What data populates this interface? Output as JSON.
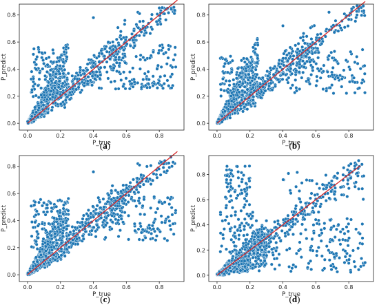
{
  "chart_data": [
    {
      "type": "scatter",
      "caption": "a",
      "xlabel": "P_true",
      "ylabel": "P_predict",
      "xlim": [
        -0.05,
        0.95
      ],
      "ylim": [
        -0.05,
        0.88
      ],
      "xticks": [
        "0.0",
        "0.2",
        "0.4",
        "0.6",
        "0.8"
      ],
      "yticks": [
        "0.0",
        "0.2",
        "0.4",
        "0.6",
        "0.8"
      ],
      "grid": false,
      "point_color": "#1f77b4",
      "line_color": "#d62728",
      "reference_line": {
        "x": [
          0.0,
          0.91
        ],
        "y": [
          0.0,
          0.91
        ]
      },
      "clusters": [
        {
          "n": 520,
          "x": [
            0.0,
            0.25
          ],
          "rel_min": 0.55,
          "rel_max": 2.5,
          "noise": 0.012
        },
        {
          "n": 100,
          "x": [
            0.02,
            0.2
          ],
          "y": [
            0.18,
            0.56
          ]
        },
        {
          "n": 200,
          "x": [
            0.25,
            0.6
          ],
          "rel_min": 0.75,
          "rel_max": 1.25,
          "noise": 0.03
        },
        {
          "n": 110,
          "x": [
            0.5,
            0.9
          ],
          "rel_min": 0.9,
          "rel_max": 1.08,
          "noise": 0.02
        },
        {
          "n": 110,
          "x": [
            0.4,
            0.9
          ],
          "y": [
            0.25,
            0.58
          ]
        },
        {
          "n": 25,
          "x": [
            0.62,
            0.8
          ],
          "y": [
            0.26,
            0.34
          ]
        }
      ],
      "extra_points": [
        {
          "x": 0.4,
          "y": 0.78
        },
        {
          "x": 0.67,
          "y": 0.82
        },
        {
          "x": 0.68,
          "y": 0.81
        }
      ]
    },
    {
      "type": "scatter",
      "caption": "b",
      "xlabel": "P_true",
      "ylabel": "P_predict",
      "xlim": [
        -0.05,
        0.95
      ],
      "ylim": [
        -0.05,
        0.88
      ],
      "xticks": [
        "0.0",
        "0.2",
        "0.4",
        "0.6",
        "0.8"
      ],
      "yticks": [
        "0.0",
        "0.2",
        "0.4",
        "0.6",
        "0.8"
      ],
      "grid": false,
      "point_color": "#1f77b4",
      "line_color": "#d62728",
      "reference_line": {
        "x": [
          0.0,
          0.9
        ],
        "y": [
          0.0,
          0.9
        ]
      },
      "clusters": [
        {
          "n": 520,
          "x": [
            0.0,
            0.25
          ],
          "rel_min": 0.6,
          "rel_max": 2.6,
          "noise": 0.012
        },
        {
          "n": 100,
          "x": [
            0.02,
            0.22
          ],
          "y": [
            0.2,
            0.5
          ]
        },
        {
          "n": 200,
          "x": [
            0.25,
            0.6
          ],
          "rel_min": 0.75,
          "rel_max": 1.25,
          "noise": 0.03
        },
        {
          "n": 110,
          "x": [
            0.5,
            0.9
          ],
          "rel_min": 0.9,
          "rel_max": 1.05,
          "noise": 0.02
        },
        {
          "n": 110,
          "x": [
            0.4,
            0.9
          ],
          "y": [
            0.22,
            0.55
          ]
        },
        {
          "n": 20,
          "x": [
            0.66,
            0.88
          ],
          "y": [
            0.3,
            0.36
          ]
        }
      ],
      "extra_points": [
        {
          "x": 0.4,
          "y": 0.72
        },
        {
          "x": 0.68,
          "y": 0.82
        },
        {
          "x": 0.85,
          "y": 0.8
        }
      ]
    },
    {
      "type": "scatter",
      "caption": "c",
      "xlabel": "P_true",
      "ylabel": "P_predict",
      "xlim": [
        -0.05,
        0.95
      ],
      "ylim": [
        -0.05,
        0.88
      ],
      "xticks": [
        "0.0",
        "0.2",
        "0.4",
        "0.6",
        "0.8"
      ],
      "yticks": [
        "0.0",
        "0.2",
        "0.4",
        "0.6",
        "0.8"
      ],
      "grid": false,
      "point_color": "#1f77b4",
      "line_color": "#d62728",
      "reference_line": {
        "x": [
          0.0,
          0.91
        ],
        "y": [
          0.0,
          0.91
        ]
      },
      "clusters": [
        {
          "n": 560,
          "x": [
            0.0,
            0.25
          ],
          "rel_min": 0.6,
          "rel_max": 2.4,
          "noise": 0.012
        },
        {
          "n": 110,
          "x": [
            0.02,
            0.22
          ],
          "y": [
            0.18,
            0.56
          ]
        },
        {
          "n": 210,
          "x": [
            0.25,
            0.6
          ],
          "rel_min": 0.75,
          "rel_max": 1.25,
          "noise": 0.03
        },
        {
          "n": 110,
          "x": [
            0.5,
            0.9
          ],
          "rel_min": 0.9,
          "rel_max": 1.08,
          "noise": 0.02
        },
        {
          "n": 110,
          "x": [
            0.4,
            0.9
          ],
          "y": [
            0.25,
            0.58
          ]
        },
        {
          "n": 25,
          "x": [
            0.65,
            0.82
          ],
          "y": [
            0.3,
            0.38
          ]
        }
      ],
      "extra_points": [
        {
          "x": 0.4,
          "y": 0.76
        },
        {
          "x": 0.67,
          "y": 0.82
        },
        {
          "x": 0.68,
          "y": 0.81
        }
      ]
    },
    {
      "type": "scatter",
      "caption": "d",
      "xlabel": "P_true",
      "ylabel": "P_predict",
      "xlim": [
        -0.05,
        0.95
      ],
      "ylim": [
        -0.05,
        0.95
      ],
      "xticks": [
        "0.0",
        "0.2",
        "0.4",
        "0.6",
        "0.8"
      ],
      "yticks": [
        "0.0",
        "0.2",
        "0.4",
        "0.6",
        "0.8"
      ],
      "grid": false,
      "point_color": "#1f77b4",
      "line_color": "#d62728",
      "reference_line": {
        "x": [
          0.0,
          0.87
        ],
        "y": [
          0.0,
          0.87
        ]
      },
      "clusters": [
        {
          "n": 600,
          "x": [
            0.0,
            0.3
          ],
          "rel_min": 0.2,
          "rel_max": 1.5,
          "noise": 0.012
        },
        {
          "n": 70,
          "x": [
            0.05,
            0.2
          ],
          "y": [
            0.5,
            0.87
          ]
        },
        {
          "n": 80,
          "x": [
            0.02,
            0.25
          ],
          "y": [
            0.15,
            0.5
          ]
        },
        {
          "n": 170,
          "x": [
            0.25,
            0.87
          ],
          "rel_min": 0.85,
          "rel_max": 1.1,
          "noise": 0.025
        },
        {
          "n": 180,
          "x": [
            0.25,
            0.9
          ],
          "y": [
            0.02,
            0.45
          ]
        },
        {
          "n": 40,
          "x": [
            0.4,
            0.9
          ],
          "y": [
            0.5,
            0.85
          ]
        }
      ],
      "extra_points": [
        {
          "x": 0.86,
          "y": 0.91
        },
        {
          "x": 0.88,
          "y": 0.88
        }
      ]
    }
  ]
}
